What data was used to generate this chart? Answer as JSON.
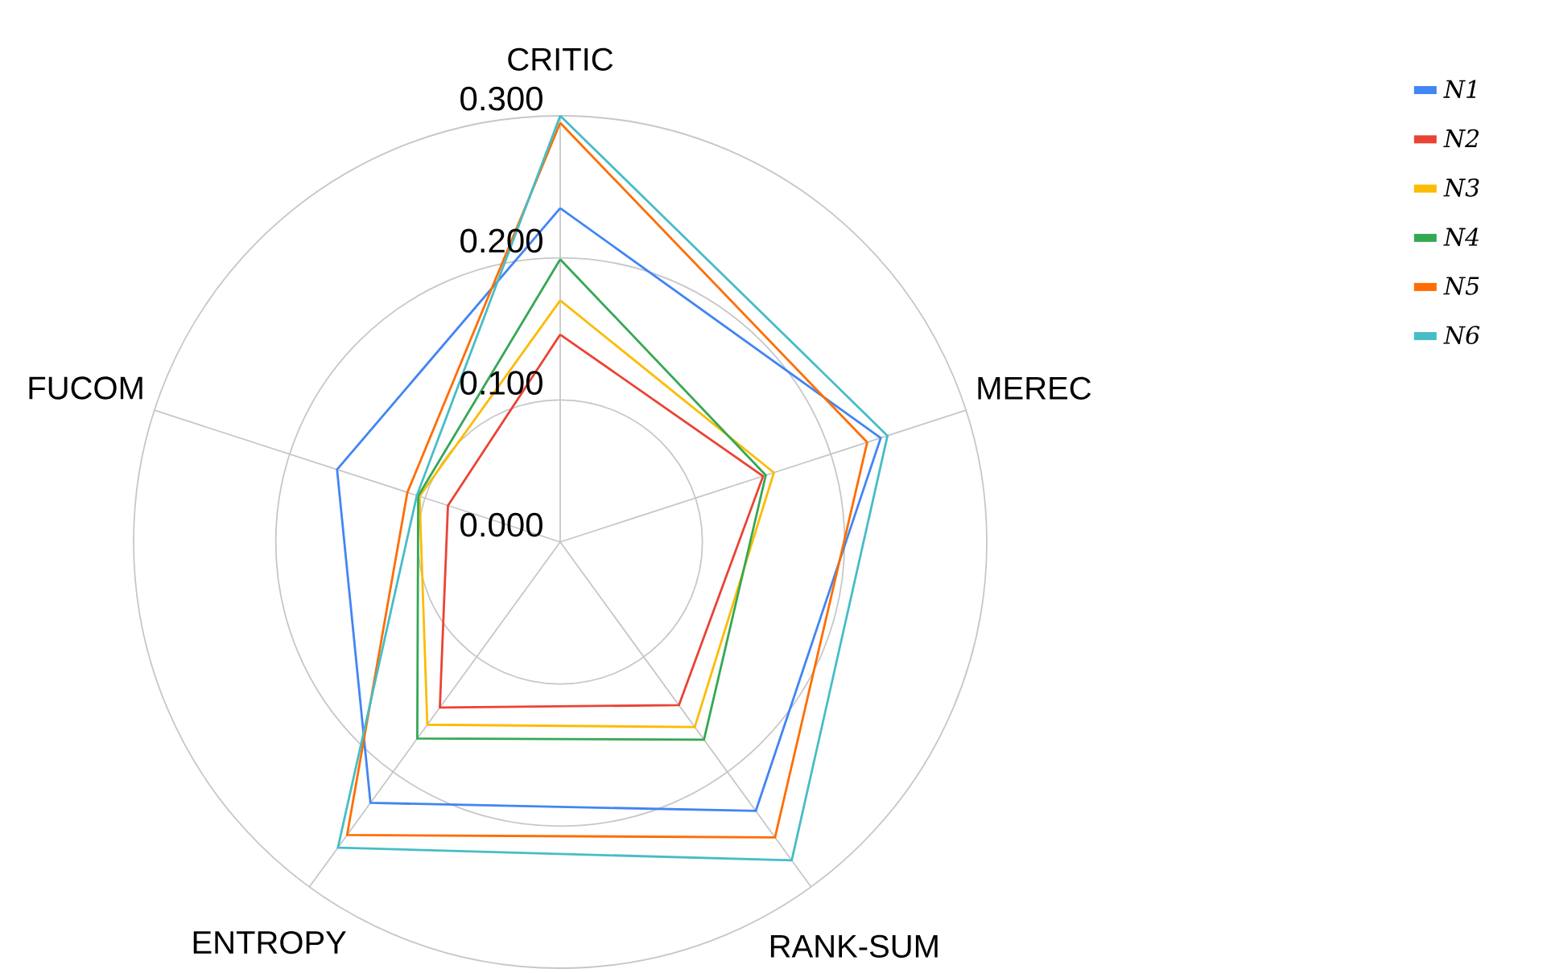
{
  "chart_data": {
    "type": "radar",
    "categories": [
      "CRITIC",
      "MEREC",
      "RANK-SUM",
      "ENTROPY",
      "FUCOM"
    ],
    "series": [
      {
        "name": "N1",
        "color": "#4285f4",
        "values": [
          0.235,
          0.237,
          0.234,
          0.227,
          0.165
        ]
      },
      {
        "name": "N2",
        "color": "#ea4335",
        "values": [
          0.146,
          0.15,
          0.142,
          0.144,
          0.083
        ]
      },
      {
        "name": "N3",
        "color": "#fbbc04",
        "values": [
          0.17,
          0.158,
          0.161,
          0.159,
          0.104
        ]
      },
      {
        "name": "N4",
        "color": "#34a853",
        "values": [
          0.199,
          0.152,
          0.172,
          0.171,
          0.105
        ]
      },
      {
        "name": "N5",
        "color": "#ff6d01",
        "values": [
          0.295,
          0.227,
          0.257,
          0.255,
          0.113
        ]
      },
      {
        "name": "N6",
        "color": "#46bdc6",
        "values": [
          0.3,
          0.242,
          0.277,
          0.266,
          0.106
        ]
      }
    ],
    "ylim": [
      0,
      0.3
    ],
    "yticks": [
      {
        "value": 0,
        "label": "0.000"
      },
      {
        "value": 0.1,
        "label": "0.100"
      },
      {
        "value": 0.2,
        "label": "0.200"
      },
      {
        "value": 0.3,
        "label": "0.300"
      }
    ],
    "grid": true,
    "legend": "top right"
  }
}
